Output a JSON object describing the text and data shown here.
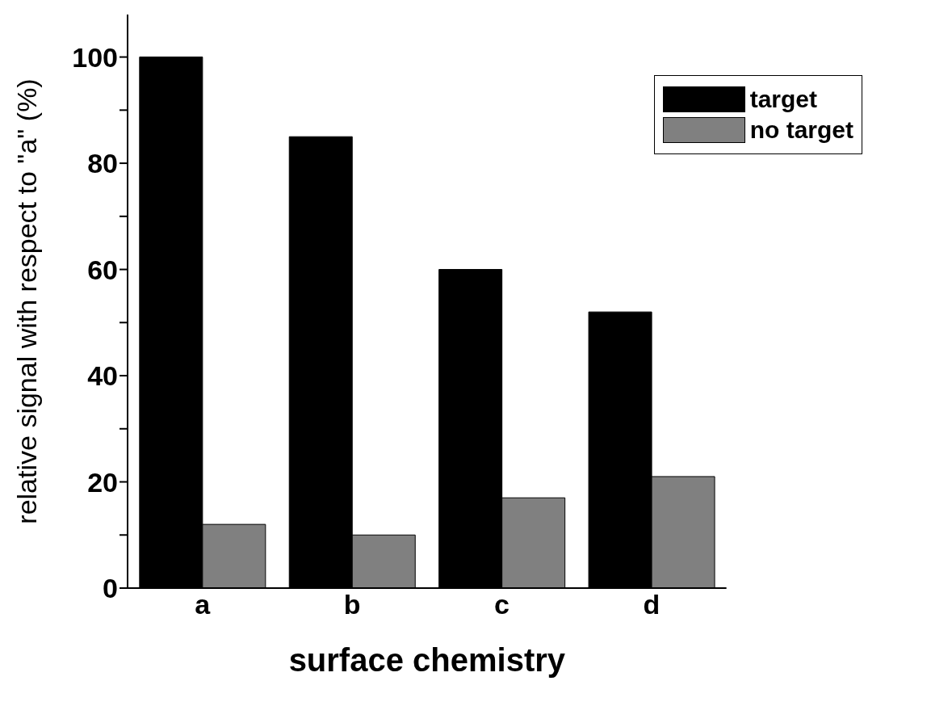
{
  "chart_data": {
    "type": "bar",
    "xlabel": "surface chemistry",
    "ylabel": "relative signal with respect to \"a\" (%)",
    "categories": [
      "a",
      "b",
      "c",
      "d"
    ],
    "series": [
      {
        "name": "target",
        "color": "#000000",
        "values": [
          100,
          85,
          60,
          52
        ]
      },
      {
        "name": "no target",
        "color": "#808080",
        "values": [
          12,
          10,
          17,
          21
        ]
      }
    ],
    "ylim": [
      0,
      108
    ],
    "yticks": [
      0,
      {
        "value": 10,
        "label": null
      },
      20,
      {
        "value": 30,
        "label": null
      },
      40,
      {
        "value": 50,
        "label": null
      },
      60,
      {
        "value": 70,
        "label": null
      },
      80,
      {
        "value": 90,
        "label": null
      },
      100
    ],
    "grid": false,
    "legend": "top right"
  }
}
